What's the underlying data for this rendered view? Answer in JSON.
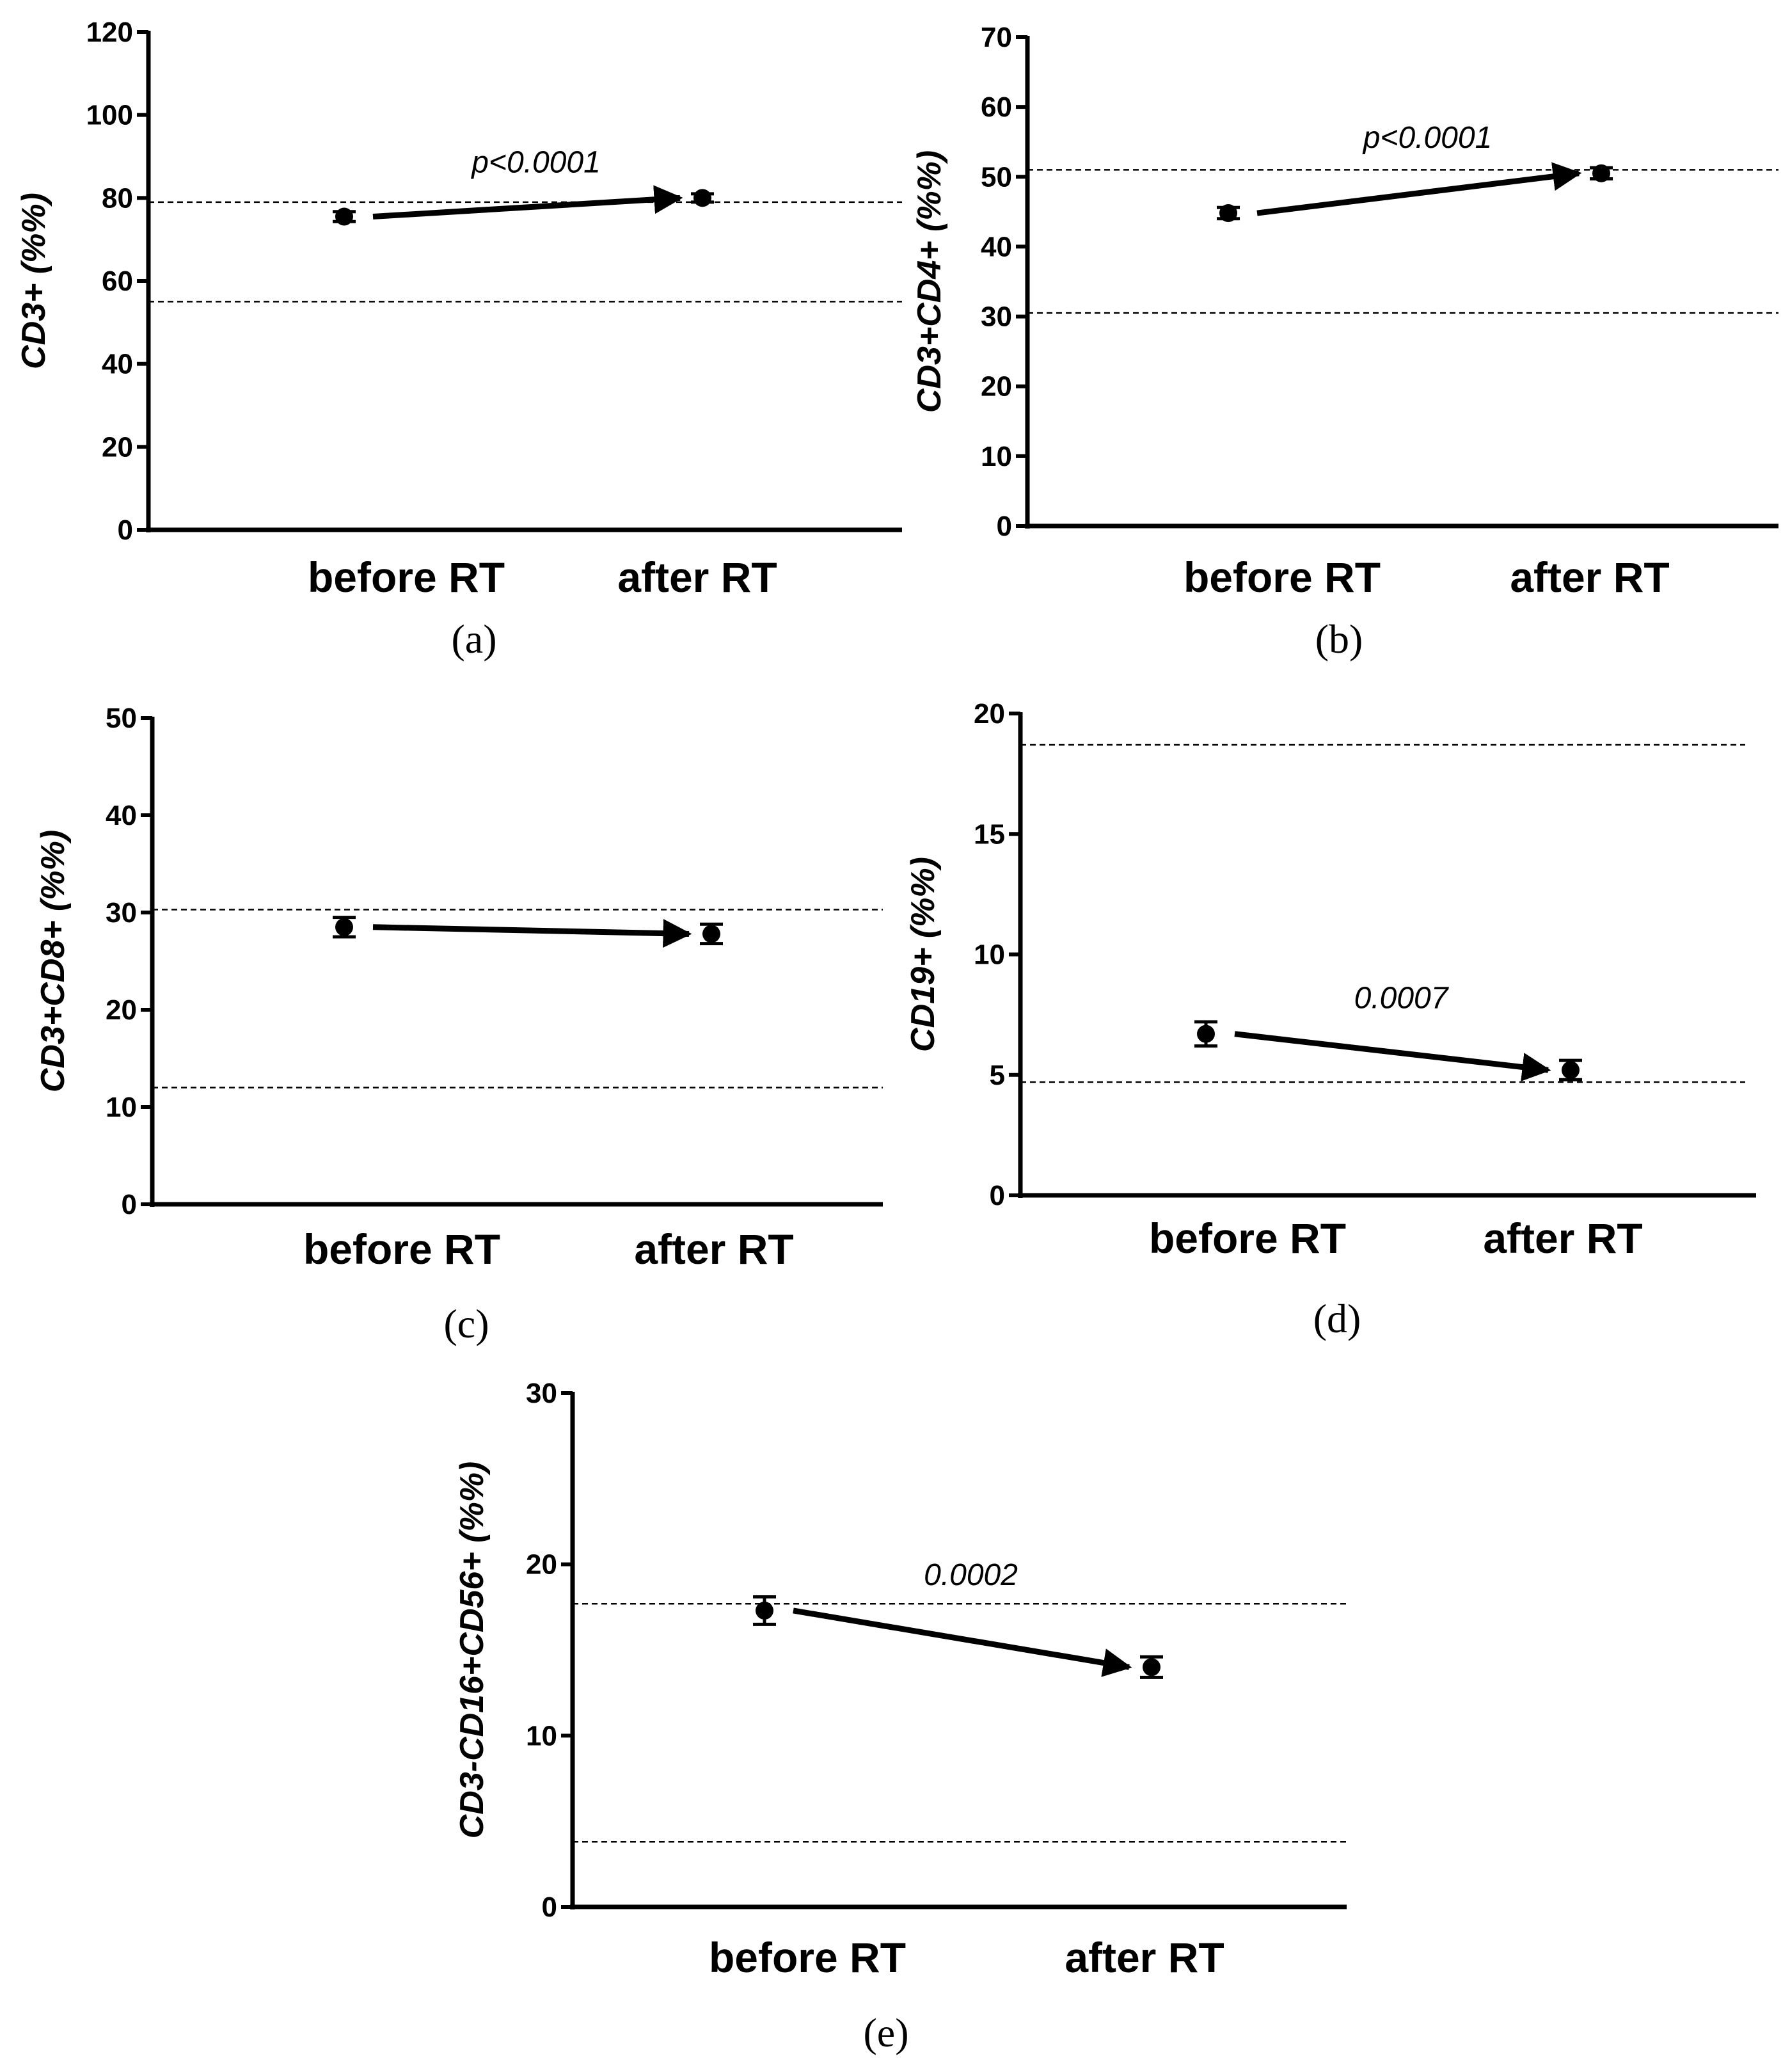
{
  "chart_data": [
    {
      "panel": "(a)",
      "type": "scatter",
      "ylabel": "CD3+ (%%)",
      "categories": [
        "before RT",
        "after RT"
      ],
      "values": [
        75.5,
        80
      ],
      "errors": [
        1.2,
        1.0
      ],
      "yticks": [
        0,
        20,
        40,
        60,
        80,
        100,
        120
      ],
      "ylim": [
        0,
        120
      ],
      "reference_lines": [
        79,
        55
      ],
      "annotation": "p<0.0001"
    },
    {
      "panel": "(b)",
      "type": "scatter",
      "ylabel": "CD3+CD4+ (%%)",
      "categories": [
        "before RT",
        "after RT"
      ],
      "values": [
        44.8,
        50.5
      ],
      "errors": [
        0.8,
        0.8
      ],
      "yticks": [
        0,
        10,
        20,
        30,
        40,
        50,
        60,
        70
      ],
      "ylim": [
        0,
        70
      ],
      "reference_lines": [
        51,
        30.5
      ],
      "annotation": "p<0.0001"
    },
    {
      "panel": "(c)",
      "type": "scatter",
      "ylabel": "CD3+CD8+ (%%)",
      "categories": [
        "before RT",
        "after RT"
      ],
      "values": [
        28.5,
        27.8
      ],
      "errors": [
        1.0,
        1.0
      ],
      "yticks": [
        0,
        10,
        20,
        30,
        40,
        50
      ],
      "ylim": [
        0,
        50
      ],
      "reference_lines": [
        30.3,
        12
      ],
      "annotation": ""
    },
    {
      "panel": "(d)",
      "type": "scatter",
      "ylabel": "CD19+ (%%)",
      "categories": [
        "before RT",
        "after RT"
      ],
      "values": [
        6.7,
        5.2
      ],
      "errors": [
        0.5,
        0.4
      ],
      "yticks": [
        0,
        5,
        10,
        15,
        20
      ],
      "ylim": [
        0,
        20
      ],
      "reference_lines": [
        18.7,
        4.7
      ],
      "annotation": "0.0007"
    },
    {
      "panel": "(e)",
      "type": "scatter",
      "ylabel": "CD3-CD16+CD56+ (%%)",
      "categories": [
        "before RT",
        "after RT"
      ],
      "values": [
        17.3,
        14
      ],
      "errors": [
        0.8,
        0.6
      ],
      "yticks": [
        0,
        10,
        20,
        30
      ],
      "ylim": [
        0,
        30
      ],
      "reference_lines": [
        17.7,
        3.8
      ],
      "annotation": "0.0002"
    }
  ]
}
